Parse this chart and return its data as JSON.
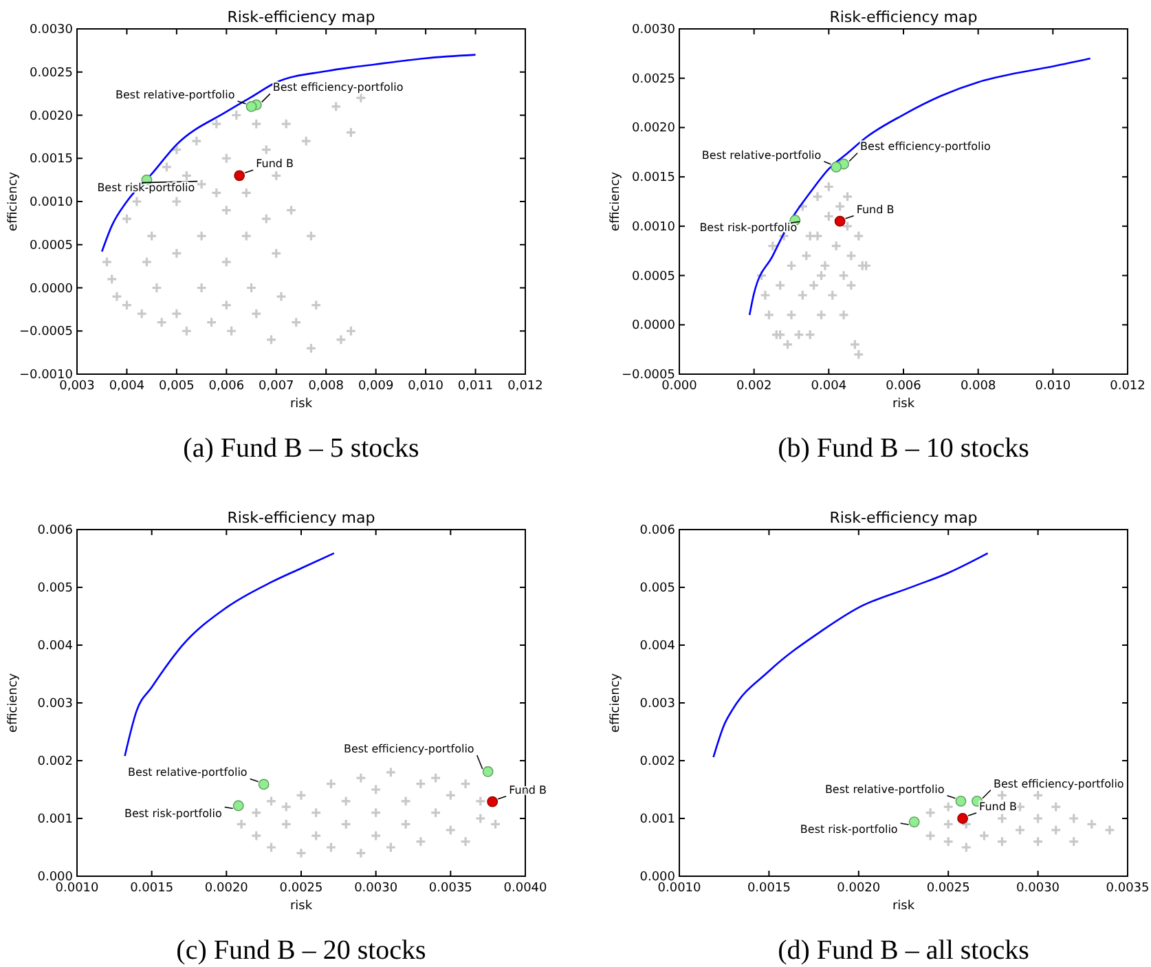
{
  "chart_data": [
    {
      "type": "scatter",
      "title": "Risk-efficiency map",
      "xlabel": "risk",
      "ylabel": "efficiency",
      "xlim": [
        0.003,
        0.012
      ],
      "ylim": [
        -0.001,
        0.003
      ],
      "xticks": [
        {
          "value": 0.003,
          "label": "0,003"
        },
        {
          "value": 0.004,
          "label": "0,004"
        },
        {
          "value": 0.005,
          "label": "0,005"
        },
        {
          "value": 0.006,
          "label": "0,006"
        },
        {
          "value": 0.007,
          "label": "0,007"
        },
        {
          "value": 0.008,
          "label": "0,008"
        },
        {
          "value": 0.009,
          "label": "0,009"
        },
        {
          "value": 0.01,
          "label": "0,010"
        },
        {
          "value": 0.011,
          "label": "0,011"
        },
        {
          "value": 0.012,
          "label": "0,012"
        }
      ],
      "yticks": [
        {
          "value": -0.001,
          "label": "−0.0010"
        },
        {
          "value": -0.0005,
          "label": "−0.0005"
        },
        {
          "value": 0,
          "label": "0.0000"
        },
        {
          "value": 0.0005,
          "label": "0.0005"
        },
        {
          "value": 0.001,
          "label": "0.0010"
        },
        {
          "value": 0.0015,
          "label": "0.0015"
        },
        {
          "value": 0.002,
          "label": "0.0020"
        },
        {
          "value": 0.0025,
          "label": "0.0025"
        },
        {
          "value": 0.003,
          "label": "0.0030"
        }
      ],
      "series": [
        {
          "type": "line",
          "color": "#0000ff",
          "marker": "none",
          "x": [
            0.0035,
            0.0037,
            0.004,
            0.0045,
            0.005,
            0.006,
            0.0065,
            0.007,
            0.008,
            0.009,
            0.01,
            0.011
          ],
          "values": [
            0.00042,
            0.00072,
            0.001,
            0.00132,
            0.00166,
            0.00204,
            0.00221,
            0.00238,
            0.00251,
            0.00259,
            0.00266,
            0.0027
          ]
        },
        {
          "type": "scatter",
          "color": "#c8c8c8",
          "marker": "cross",
          "x": [
            0.0036,
            0.0037,
            0.0038,
            0.004,
            0.004,
            0.0042,
            0.0043,
            0.0045,
            0.0046,
            0.0047,
            0.0048,
            0.005,
            0.005,
            0.005,
            0.005,
            0.0052,
            0.0054,
            0.0055,
            0.0055,
            0.0055,
            0.0057,
            0.0058,
            0.006,
            0.006,
            0.006,
            0.006,
            0.0061,
            0.0062,
            0.0064,
            0.0064,
            0.0065,
            0.0066,
            0.0066,
            0.0068,
            0.0068,
            0.0069,
            0.007,
            0.007,
            0.0071,
            0.0072,
            0.0073,
            0.0074,
            0.0076,
            0.0077,
            0.0077,
            0.0078,
            0.0082,
            0.0083,
            0.0085,
            0.0087,
            0.0085,
            0.0052,
            0.0058,
            0.0044
          ],
          "values": [
            0.0003,
            0.0001,
            -0.0001,
            0.0008,
            -0.0002,
            0.001,
            -0.0003,
            0.0006,
            0.0,
            -0.0004,
            0.0014,
            0.0016,
            0.001,
            0.0004,
            -0.0003,
            -0.0005,
            0.0017,
            0.0012,
            0.0006,
            0.0,
            -0.0004,
            0.0019,
            0.0015,
            0.0009,
            0.0003,
            -0.0002,
            -0.0005,
            0.002,
            0.0011,
            0.0006,
            0.0,
            -0.0003,
            0.0019,
            0.0016,
            0.0008,
            -0.0006,
            0.0013,
            0.0004,
            -0.0001,
            0.0019,
            0.0009,
            -0.0004,
            0.0017,
            0.0006,
            -0.0007,
            -0.0002,
            0.0021,
            -0.0006,
            0.0018,
            0.0022,
            -0.0005,
            0.0013,
            0.0011,
            0.0003
          ]
        },
        {
          "type": "scatter",
          "color": "#90ee90",
          "marker": "circle",
          "x": [
            0.0066,
            0.0065,
            0.0044
          ],
          "values": [
            0.00212,
            0.0021,
            0.00125
          ]
        },
        {
          "type": "scatter",
          "color": "#e00000",
          "marker": "circle",
          "x": [
            0.00626
          ],
          "values": [
            0.0013
          ]
        }
      ],
      "annotations": [
        {
          "text": "Best efficiency-portfolio",
          "x": 0.0066,
          "y": 0.00212
        },
        {
          "text": "Best relative-portfolio",
          "x": 0.0065,
          "y": 0.0021
        },
        {
          "text": "Best risk-portfolio",
          "x": 0.0044,
          "y": 0.00125
        },
        {
          "text": "Fund B",
          "x": 0.00626,
          "y": 0.0013
        },
        "(a) Fund B – 5 stocks"
      ]
    },
    {
      "type": "scatter",
      "title": "Risk-efficiency map",
      "xlabel": "risk",
      "ylabel": "efficiency",
      "xlim": [
        0,
        0.012
      ],
      "ylim": [
        -0.0005,
        0.003
      ],
      "xticks": [
        {
          "value": 0,
          "label": "0.000"
        },
        {
          "value": 0.002,
          "label": "0.002"
        },
        {
          "value": 0.004,
          "label": "0.004"
        },
        {
          "value": 0.006,
          "label": "0.006"
        },
        {
          "value": 0.008,
          "label": "0.008"
        },
        {
          "value": 0.01,
          "label": "0.010"
        },
        {
          "value": 0.012,
          "label": "0.012"
        }
      ],
      "yticks": [
        {
          "value": -0.0005,
          "label": "−0.0005"
        },
        {
          "value": 0,
          "label": "0.0000"
        },
        {
          "value": 0.0005,
          "label": "0.0005"
        },
        {
          "value": 0.001,
          "label": "0.0010"
        },
        {
          "value": 0.0015,
          "label": "0.0015"
        },
        {
          "value": 0.002,
          "label": "0.0020"
        },
        {
          "value": 0.0025,
          "label": "0.0025"
        },
        {
          "value": 0.003,
          "label": "0.0030"
        }
      ],
      "series": [
        {
          "type": "line",
          "color": "#0000ff",
          "marker": "none",
          "x": [
            0.00188,
            0.002,
            0.0025,
            0.003,
            0.0035,
            0.004,
            0.0045,
            0.005,
            0.006,
            0.007,
            0.008,
            0.009,
            0.01,
            0.011
          ],
          "values": [
            0.0001,
            0.00032,
            0.0007,
            0.00107,
            0.00134,
            0.00158,
            0.00174,
            0.0019,
            0.00213,
            0.00232,
            0.00246,
            0.00255,
            0.00262,
            0.0027
          ]
        },
        {
          "type": "scatter",
          "color": "#c8c8c8",
          "marker": "cross",
          "x": [
            0.0022,
            0.0023,
            0.0024,
            0.0025,
            0.0026,
            0.0027,
            0.0028,
            0.0029,
            0.003,
            0.003,
            0.0032,
            0.0033,
            0.0033,
            0.0034,
            0.0035,
            0.0036,
            0.0037,
            0.0037,
            0.0038,
            0.0039,
            0.004,
            0.004,
            0.0041,
            0.0042,
            0.0043,
            0.0044,
            0.0044,
            0.0045,
            0.0046,
            0.0046,
            0.0047,
            0.0048,
            0.005,
            0.0049,
            0.0048,
            0.0045,
            0.0027,
            0.0035,
            0.0038
          ],
          "values": [
            0.0005,
            0.0003,
            0.0001,
            0.0008,
            -0.0001,
            0.0004,
            0.0009,
            -0.0002,
            0.0001,
            0.0006,
            -0.0001,
            0.0003,
            0.0012,
            0.0007,
            -0.0001,
            0.0004,
            0.0013,
            0.0009,
            0.0001,
            0.0006,
            0.0014,
            0.0011,
            0.0003,
            0.0008,
            0.0012,
            0.0005,
            0.0001,
            0.001,
            0.0007,
            0.0004,
            -0.0002,
            0.0009,
            0.0006,
            0.0006,
            -0.0003,
            0.0013,
            -0.0001,
            0.0009,
            0.0005
          ]
        },
        {
          "type": "scatter",
          "color": "#90ee90",
          "marker": "circle",
          "x": [
            0.0044,
            0.0042,
            0.0031
          ],
          "values": [
            0.00163,
            0.0016,
            0.00106
          ]
        },
        {
          "type": "scatter",
          "color": "#e00000",
          "marker": "circle",
          "x": [
            0.0043
          ],
          "values": [
            0.00105
          ]
        }
      ],
      "annotations": [
        {
          "text": "Best efficiency-portfolio",
          "x": 0.0044,
          "y": 0.00163
        },
        {
          "text": "Best relative-portfolio",
          "x": 0.0042,
          "y": 0.0016
        },
        {
          "text": "Best risk-portfolio",
          "x": 0.0031,
          "y": 0.00106
        },
        {
          "text": "Fund B",
          "x": 0.0043,
          "y": 0.00105
        },
        "(b) Fund B – 10 stocks"
      ]
    },
    {
      "type": "scatter",
      "title": "Risk-efficiency map",
      "xlabel": "risk",
      "ylabel": "efficiency",
      "xlim": [
        0.001,
        0.004
      ],
      "ylim": [
        0,
        0.006
      ],
      "xticks": [
        {
          "value": 0.001,
          "label": "0.0010"
        },
        {
          "value": 0.0015,
          "label": "0.0015"
        },
        {
          "value": 0.002,
          "label": "0.0020"
        },
        {
          "value": 0.0025,
          "label": "0.0025"
        },
        {
          "value": 0.003,
          "label": "0.0030"
        },
        {
          "value": 0.0035,
          "label": "0.0035"
        },
        {
          "value": 0.004,
          "label": "0.0040"
        }
      ],
      "yticks": [
        {
          "value": 0,
          "label": "0.000"
        },
        {
          "value": 0.001,
          "label": "0.001"
        },
        {
          "value": 0.002,
          "label": "0.002"
        },
        {
          "value": 0.003,
          "label": "0.003"
        },
        {
          "value": 0.004,
          "label": "0.004"
        },
        {
          "value": 0.005,
          "label": "0.005"
        },
        {
          "value": 0.006,
          "label": "0.006"
        }
      ],
      "series": [
        {
          "type": "line",
          "color": "#0000ff",
          "marker": "none",
          "x": [
            0.00132,
            0.0014,
            0.0015,
            0.0017,
            0.002,
            0.0023,
            0.0025,
            0.00272
          ],
          "values": [
            0.00208,
            0.00287,
            0.00327,
            0.00398,
            0.00465,
            0.00509,
            0.00533,
            0.00559
          ]
        },
        {
          "type": "scatter",
          "color": "#c8c8c8",
          "marker": "cross",
          "x": [
            0.0021,
            0.0022,
            0.0022,
            0.0023,
            0.0023,
            0.0024,
            0.0025,
            0.0025,
            0.0026,
            0.0026,
            0.0027,
            0.0027,
            0.0028,
            0.0028,
            0.0029,
            0.0029,
            0.003,
            0.003,
            0.003,
            0.0031,
            0.0032,
            0.0032,
            0.0033,
            0.0033,
            0.0034,
            0.0035,
            0.0035,
            0.0036,
            0.0036,
            0.0037,
            0.0037,
            0.0038,
            0.0034,
            0.0031,
            0.0024
          ],
          "values": [
            0.0009,
            0.0007,
            0.0011,
            0.0005,
            0.0013,
            0.0009,
            0.0004,
            0.0014,
            0.0007,
            0.0011,
            0.0016,
            0.0005,
            0.0009,
            0.0013,
            0.0004,
            0.0017,
            0.0007,
            0.0011,
            0.0015,
            0.0005,
            0.0009,
            0.0013,
            0.0016,
            0.0006,
            0.0011,
            0.0008,
            0.0014,
            0.0016,
            0.0006,
            0.001,
            0.0013,
            0.0009,
            0.0017,
            0.0018,
            0.0012
          ]
        },
        {
          "type": "scatter",
          "color": "#90ee90",
          "marker": "circle",
          "x": [
            0.00375,
            0.00225,
            0.00208
          ],
          "values": [
            0.00181,
            0.00159,
            0.00122
          ]
        },
        {
          "type": "scatter",
          "color": "#e00000",
          "marker": "circle",
          "x": [
            0.00378
          ],
          "values": [
            0.00129
          ]
        }
      ],
      "annotations": [
        {
          "text": "Best efficiency-portfolio",
          "x": 0.00375,
          "y": 0.00181
        },
        {
          "text": "Best relative-portfolio",
          "x": 0.00225,
          "y": 0.00159
        },
        {
          "text": "Best risk-portfolio",
          "x": 0.00208,
          "y": 0.00122
        },
        {
          "text": "Fund B",
          "x": 0.00378,
          "y": 0.00129
        },
        "(c) Fund B – 20 stocks"
      ]
    },
    {
      "type": "scatter",
      "title": "Risk-efficiency map",
      "xlabel": "risk",
      "ylabel": "efficiency",
      "xlim": [
        0.001,
        0.0035
      ],
      "ylim": [
        0,
        0.006
      ],
      "xticks": [
        {
          "value": 0.001,
          "label": "0.0010"
        },
        {
          "value": 0.0015,
          "label": "0.0015"
        },
        {
          "value": 0.002,
          "label": "0.0020"
        },
        {
          "value": 0.0025,
          "label": "0.0025"
        },
        {
          "value": 0.003,
          "label": "0.0030"
        },
        {
          "value": 0.0035,
          "label": "0.0035"
        }
      ],
      "yticks": [
        {
          "value": 0,
          "label": "0.000"
        },
        {
          "value": 0.001,
          "label": "0.001"
        },
        {
          "value": 0.002,
          "label": "0.002"
        },
        {
          "value": 0.003,
          "label": "0.003"
        },
        {
          "value": 0.004,
          "label": "0.004"
        },
        {
          "value": 0.005,
          "label": "0.005"
        },
        {
          "value": 0.006,
          "label": "0.006"
        }
      ],
      "series": [
        {
          "type": "line",
          "color": "#0000ff",
          "marker": "none",
          "x": [
            0.00119,
            0.00125,
            0.0013,
            0.0015,
            0.0018,
            0.002,
            0.0023,
            0.0025,
            0.00272
          ],
          "values": [
            0.00206,
            0.00262,
            0.0029,
            0.00355,
            0.00426,
            0.00465,
            0.00501,
            0.00525,
            0.00559
          ]
        },
        {
          "type": "scatter",
          "color": "#c8c8c8",
          "marker": "cross",
          "x": [
            0.0024,
            0.0024,
            0.0025,
            0.0025,
            0.0026,
            0.0026,
            0.0027,
            0.0028,
            0.0028,
            0.0029,
            0.0029,
            0.003,
            0.003,
            0.003,
            0.0031,
            0.0031,
            0.0032,
            0.0032,
            0.0033,
            0.0034,
            0.0028,
            0.0025
          ],
          "values": [
            0.0007,
            0.0011,
            0.0006,
            0.0012,
            0.0009,
            0.0005,
            0.0007,
            0.001,
            0.0006,
            0.0012,
            0.0008,
            0.0014,
            0.0006,
            0.001,
            0.0008,
            0.0012,
            0.001,
            0.0006,
            0.0009,
            0.0008,
            0.0014,
            0.0009
          ]
        },
        {
          "type": "scatter",
          "color": "#90ee90",
          "marker": "circle",
          "x": [
            0.00266,
            0.00257,
            0.00231
          ],
          "values": [
            0.0013,
            0.0013,
            0.00094
          ]
        },
        {
          "type": "scatter",
          "color": "#e00000",
          "marker": "circle",
          "x": [
            0.00258
          ],
          "values": [
            0.001
          ]
        }
      ],
      "annotations": [
        {
          "text": "Best efficiency-portfolio",
          "x": 0.00266,
          "y": 0.0013
        },
        {
          "text": "Best relative-portfolio",
          "x": 0.00257,
          "y": 0.0013
        },
        {
          "text": "Best risk-portfolio",
          "x": 0.00231,
          "y": 0.00094
        },
        {
          "text": "Fund B",
          "x": 0.00258,
          "y": 0.001
        },
        "(d) Fund B – all stocks"
      ]
    }
  ]
}
